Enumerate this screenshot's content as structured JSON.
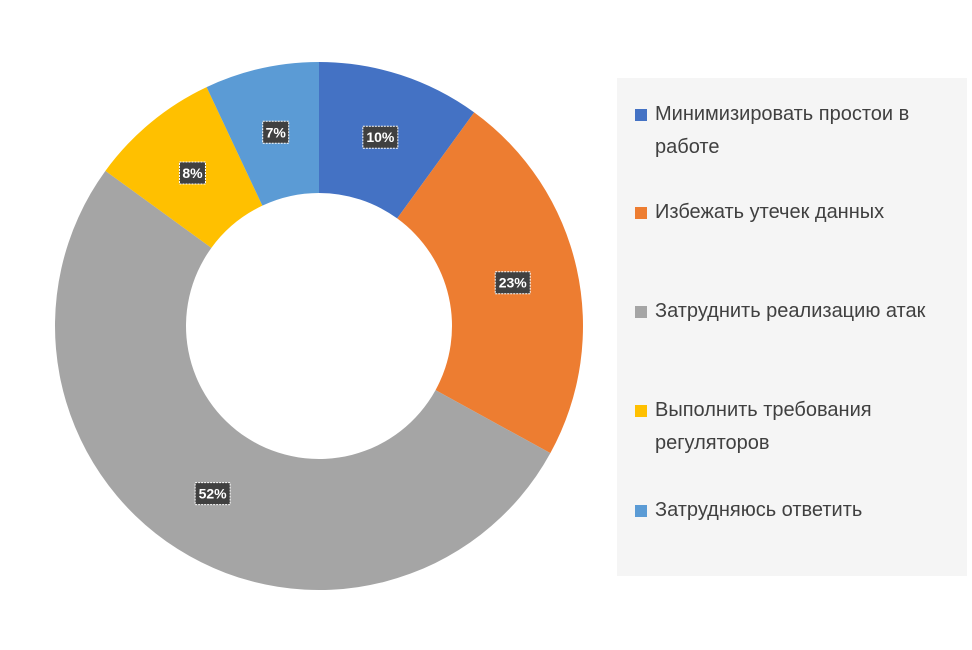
{
  "chart_data": {
    "type": "pie",
    "donut": true,
    "categories": [
      "Минимизировать простои в работе",
      "Избежать утечек данных",
      "Затруднить реализацию атак",
      "Выполнить требования регуляторов",
      "Затрудняюсь ответить"
    ],
    "values": [
      10,
      23,
      52,
      8,
      7
    ],
    "data_labels": [
      "10%",
      "23%",
      "52%",
      "8%",
      "7%"
    ],
    "colors": [
      "#4472C4",
      "#ED7D31",
      "#A5A5A5",
      "#FFC000",
      "#5B9BD5"
    ],
    "legend_position": "right",
    "title": ""
  }
}
